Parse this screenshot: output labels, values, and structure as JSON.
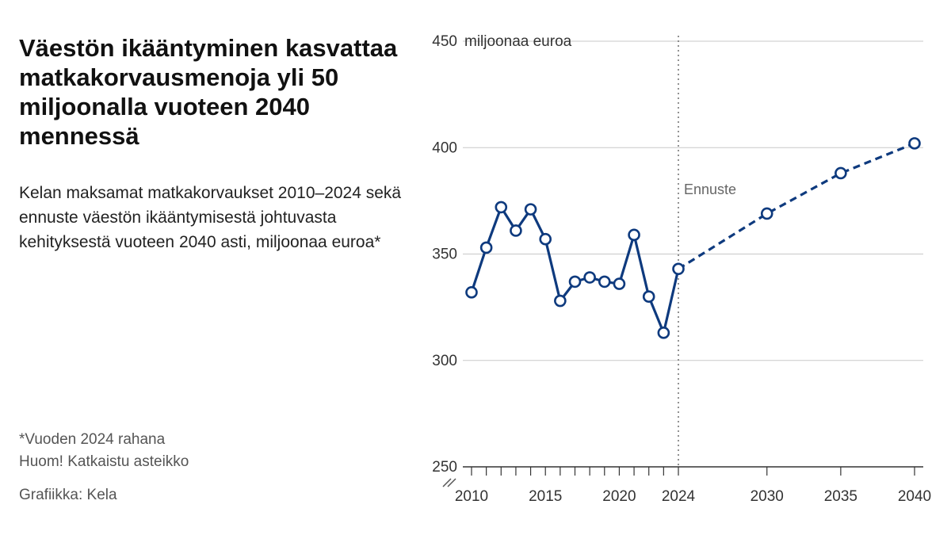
{
  "title": "Väestön ikääntyminen kasvattaa matkakorvausmenoja yli 50 miljoonalla vuoteen 2040 mennessä",
  "subtitle": "Kelan maksamat matkakorvaukset 2010–2024 sekä ennuste väestön ikääntymisestä johtuvasta kehityksestä vuoteen 2040 asti, miljoonaa euroa*",
  "notes": {
    "footnote": "*Vuoden 2024 rahana",
    "axis_break_note": "Huom! Katkaistu asteikko"
  },
  "credit": "Grafiikka: Kela",
  "chart_data": {
    "type": "line",
    "title": "",
    "xlabel": "",
    "ylabel": "miljoonaa euroa",
    "ylim": [
      250,
      450
    ],
    "y_ticks": [
      250,
      300,
      350,
      400,
      450
    ],
    "x_ticks_labeled": [
      2010,
      2015,
      2020,
      2024,
      2030,
      2035,
      2040
    ],
    "x_ticks_minor": [
      2011,
      2012,
      2013,
      2014,
      2016,
      2017,
      2018,
      2019,
      2021,
      2022,
      2023
    ],
    "axis_break": true,
    "grid": "horizontal",
    "forecast_start": 2024,
    "forecast_label": "Ennuste",
    "color": "#0e3a7e",
    "series": [
      {
        "style": "solid",
        "x": [
          2010,
          2011,
          2012,
          2013,
          2014,
          2015,
          2016,
          2017,
          2018,
          2019,
          2020,
          2021,
          2022,
          2023,
          2024
        ],
        "values": [
          332,
          353,
          372,
          361,
          371,
          357,
          328,
          337,
          339,
          337,
          336,
          359,
          330,
          313,
          343
        ]
      },
      {
        "style": "dashed",
        "x": [
          2024,
          2030,
          2035,
          2040
        ],
        "values": [
          343,
          369,
          388,
          402
        ]
      }
    ]
  }
}
